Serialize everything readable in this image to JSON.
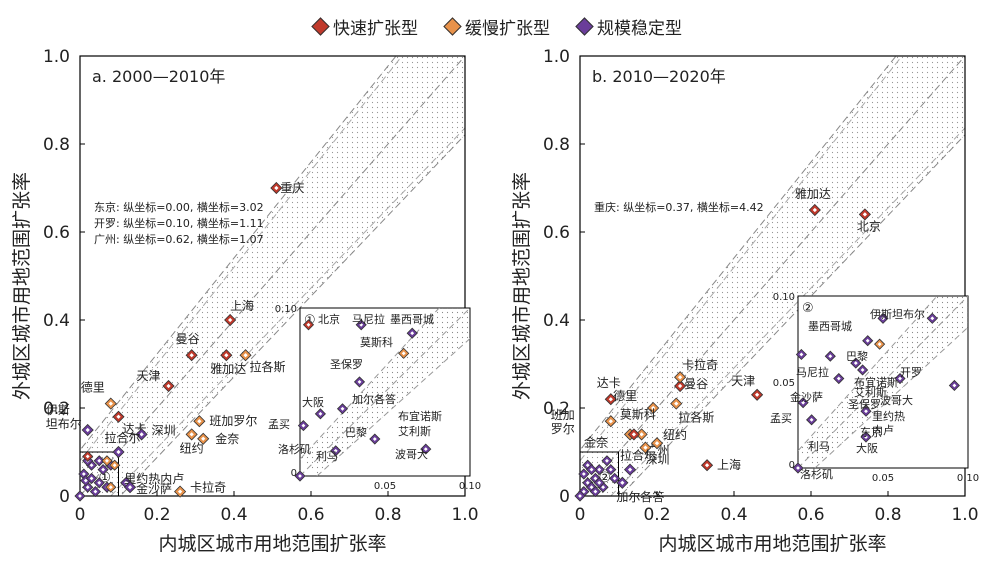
{
  "legend": {
    "fast": "快速扩张型",
    "slow": "缓慢扩张型",
    "stable": "规模稳定型"
  },
  "colors": {
    "fast": "#c0392b",
    "slow": "#e8924a",
    "stable": "#6a3d9a"
  },
  "chart_data": [
    {
      "type": "scatter",
      "title": "a. 2000—2010年",
      "xlabel": "内城区城市用地范围扩张率",
      "ylabel": "外城区城市用地范围扩张率",
      "xlim": [
        0,
        1.0
      ],
      "ylim": [
        0,
        1.0
      ],
      "xticks": [
        "0",
        "0.2",
        "0.4",
        "0.6",
        "0.8",
        "1.0"
      ],
      "yticks": [
        "0",
        "0.2",
        "0.4",
        "0.6",
        "0.8",
        "1.0"
      ],
      "note_lines": [
        "东京: 纵坐标=0.00, 横坐标=3.02",
        "开罗: 纵坐标=0.10, 横坐标=1.11",
        "广州: 纵坐标=0.62, 横坐标=1.07"
      ],
      "inset": {
        "label": "①",
        "tick_0": "0",
        "tick_005": "0.05",
        "tick_010": "0.10",
        "ytick_010": "0.10"
      },
      "points": [
        {
          "name": "重庆",
          "x": 0.51,
          "y": 0.7,
          "cat": "fast"
        },
        {
          "name": "上海",
          "x": 0.39,
          "y": 0.4,
          "cat": "fast"
        },
        {
          "name": "曼谷",
          "x": 0.29,
          "y": 0.32,
          "cat": "fast"
        },
        {
          "name": "雅加达",
          "x": 0.38,
          "y": 0.32,
          "cat": "fast"
        },
        {
          "name": "天津",
          "x": 0.23,
          "y": 0.25,
          "cat": "fast"
        },
        {
          "name": "达卡",
          "x": 0.1,
          "y": 0.18,
          "cat": "fast"
        },
        {
          "name": "拉各斯",
          "x": 0.43,
          "y": 0.32,
          "cat": "slow"
        },
        {
          "name": "德里",
          "x": 0.08,
          "y": 0.21,
          "cat": "slow"
        },
        {
          "name": "班加罗尔",
          "x": 0.31,
          "y": 0.17,
          "cat": "slow"
        },
        {
          "name": "金奈",
          "x": 0.32,
          "y": 0.13,
          "cat": "slow"
        },
        {
          "name": "纽约",
          "x": 0.29,
          "y": 0.14,
          "cat": "slow"
        },
        {
          "name": "卡拉奇",
          "x": 0.26,
          "y": 0.01,
          "cat": "slow"
        },
        {
          "name": "深圳",
          "x": 0.16,
          "y": 0.14,
          "cat": "stable"
        },
        {
          "name": "伊斯坦布尔",
          "x": 0.02,
          "y": 0.15,
          "cat": "stable"
        },
        {
          "name": "拉合尔",
          "x": 0.1,
          "y": 0.1,
          "cat": "stable"
        },
        {
          "name": "里约热内卢",
          "x": 0.12,
          "y": 0.03,
          "cat": "stable"
        },
        {
          "name": "金沙萨",
          "x": 0.13,
          "y": 0.02,
          "cat": "stable"
        }
      ],
      "inset_points": [
        {
          "name": "北京",
          "x": 0.005,
          "y": 0.09,
          "cat": "fast"
        },
        {
          "name": "马尼拉",
          "x": 0.036,
          "y": 0.09,
          "cat": "stable"
        },
        {
          "name": "墨西哥城",
          "x": 0.066,
          "y": 0.085,
          "cat": "stable"
        },
        {
          "name": "莫斯科",
          "x": 0.061,
          "y": 0.073,
          "cat": "slow"
        },
        {
          "name": "圣保罗",
          "x": 0.035,
          "y": 0.056,
          "cat": "stable"
        },
        {
          "name": "加尔各答",
          "x": 0.025,
          "y": 0.04,
          "cat": "stable"
        },
        {
          "name": "大阪",
          "x": 0.012,
          "y": 0.037,
          "cat": "stable"
        },
        {
          "name": "孟买",
          "x": 0.002,
          "y": 0.03,
          "cat": "stable"
        },
        {
          "name": "巴黎",
          "x": 0.044,
          "y": 0.022,
          "cat": "stable"
        },
        {
          "name": "布宜诺斯艾利斯",
          "x": 0.074,
          "y": 0.016,
          "cat": "stable"
        },
        {
          "name": "利马",
          "x": 0.021,
          "y": 0.015,
          "cat": "stable"
        },
        {
          "name": "洛杉矶",
          "x": 0.0,
          "y": 0.0,
          "cat": "stable"
        }
      ],
      "inset_labels": [
        "北京",
        "马尼拉",
        "墨西哥城",
        "莫斯科",
        "圣保罗",
        "加尔各答",
        "大阪",
        "孟买",
        "巴黎",
        "布宜诺斯",
        "艾利斯",
        "利马",
        "波哥大",
        "洛杉矶"
      ]
    },
    {
      "type": "scatter",
      "title": "b. 2010—2020年",
      "xlabel": "内城区城市用地范围扩张率",
      "ylabel": "外城区城市用地范围扩张率",
      "xlim": [
        0,
        1.0
      ],
      "ylim": [
        0,
        1.0
      ],
      "xticks": [
        "0",
        "0.2",
        "0.4",
        "0.6",
        "0.8",
        "1.0"
      ],
      "yticks": [
        "0",
        "0.2",
        "0.4",
        "0.6",
        "0.8",
        "1.0"
      ],
      "note_lines": [
        "重庆: 纵坐标=0.37, 横坐标=4.42"
      ],
      "inset": {
        "label": "②",
        "tick_0": "0",
        "tick_005": "0.05",
        "tick_010": "0.10",
        "ytick_010": "0.10",
        "ytick_005": "0.05"
      },
      "points": [
        {
          "name": "雅加达",
          "x": 0.61,
          "y": 0.65,
          "cat": "fast"
        },
        {
          "name": "北京",
          "x": 0.74,
          "y": 0.64,
          "cat": "fast"
        },
        {
          "name": "达卡",
          "x": 0.08,
          "y": 0.22,
          "cat": "fast"
        },
        {
          "name": "天津",
          "x": 0.46,
          "y": 0.23,
          "cat": "fast"
        },
        {
          "name": "曼谷",
          "x": 0.26,
          "y": 0.25,
          "cat": "fast"
        },
        {
          "name": "上海",
          "x": 0.33,
          "y": 0.07,
          "cat": "fast"
        },
        {
          "name": "卡拉奇",
          "x": 0.26,
          "y": 0.27,
          "cat": "slow"
        },
        {
          "name": "德里",
          "x": 0.19,
          "y": 0.2,
          "cat": "slow"
        },
        {
          "name": "拉各斯",
          "x": 0.25,
          "y": 0.21,
          "cat": "slow"
        },
        {
          "name": "广州",
          "x": 0.16,
          "y": 0.14,
          "cat": "slow"
        },
        {
          "name": "纽约",
          "x": 0.2,
          "y": 0.12,
          "cat": "slow"
        },
        {
          "name": "深圳",
          "x": 0.17,
          "y": 0.11,
          "cat": "slow"
        },
        {
          "name": "班加罗尔",
          "x": 0.08,
          "y": 0.17,
          "cat": "slow"
        },
        {
          "name": "金奈",
          "x": 0.13,
          "y": 0.14,
          "cat": "slow"
        },
        {
          "name": "莫斯科",
          "x": 0.14,
          "y": 0.14,
          "cat": "fast"
        },
        {
          "name": "拉合尔",
          "x": 0.13,
          "y": 0.06,
          "cat": "stable"
        },
        {
          "name": "加尔各答",
          "x": 0.11,
          "y": 0.03,
          "cat": "stable"
        }
      ],
      "inset_points": [
        {
          "name": "伊斯坦布尔",
          "x": 0.079,
          "y": 0.087,
          "cat": "stable"
        },
        {
          "name": "墨西哥城",
          "x": 0.05,
          "y": 0.087,
          "cat": "stable"
        },
        {
          "name": "巴黎",
          "x": 0.041,
          "y": 0.074,
          "cat": "stable"
        },
        {
          "name": "开罗",
          "x": 0.048,
          "y": 0.072,
          "cat": "slow"
        },
        {
          "name": "马尼拉",
          "x": 0.019,
          "y": 0.065,
          "cat": "stable"
        },
        {
          "name": "布宜诺斯",
          "x": 0.034,
          "y": 0.061,
          "cat": "stable"
        },
        {
          "name": "艾利斯",
          "x": 0.038,
          "y": 0.057,
          "cat": "stable"
        },
        {
          "name": "金沙萨",
          "x": 0.002,
          "y": 0.066,
          "cat": "stable"
        },
        {
          "name": "圣保罗",
          "x": 0.024,
          "y": 0.052,
          "cat": "stable"
        },
        {
          "name": "波哥大",
          "x": 0.06,
          "y": 0.052,
          "cat": "stable"
        },
        {
          "name": "里约热内卢",
          "x": 0.092,
          "y": 0.048,
          "cat": "stable"
        },
        {
          "name": "孟买",
          "x": 0.003,
          "y": 0.038,
          "cat": "stable"
        },
        {
          "name": "东京",
          "x": 0.04,
          "y": 0.033,
          "cat": "stable"
        },
        {
          "name": "利马",
          "x": 0.008,
          "y": 0.028,
          "cat": "stable"
        },
        {
          "name": "大阪",
          "x": 0.04,
          "y": 0.018,
          "cat": "stable"
        },
        {
          "name": "洛杉矶",
          "x": 0.0,
          "y": 0.0,
          "cat": "stable"
        }
      ],
      "inset_labels": [
        "伊斯坦布尔",
        "墨西哥城",
        "巴黎",
        "开罗",
        "马尼拉",
        "布宜诺斯",
        "艾利斯",
        "金沙萨",
        "圣保罗",
        "波哥大",
        "里约热",
        "内卢",
        "孟买",
        "东京",
        "利马",
        "大阪",
        "洛杉矶"
      ]
    }
  ]
}
